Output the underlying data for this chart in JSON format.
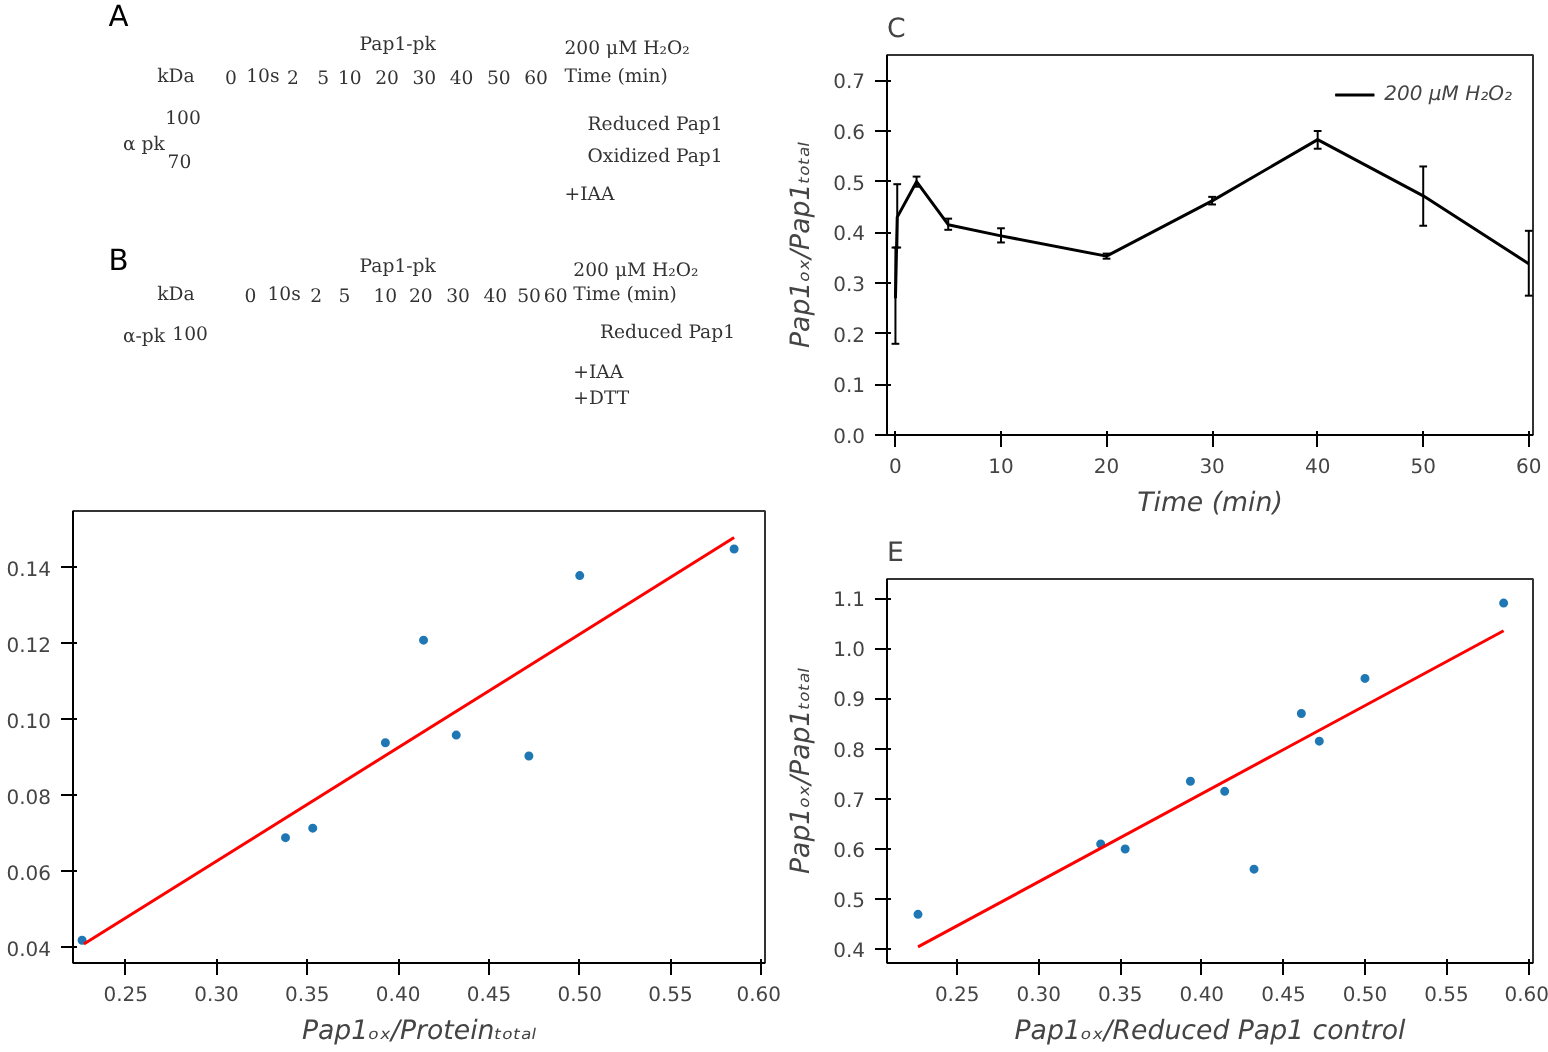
{
  "chart_data": [
    {
      "type": "other",
      "title": "A",
      "categories": [
        "0",
        "10s",
        "2",
        "5",
        "10",
        "20",
        "30",
        "40",
        "50",
        "60"
      ],
      "annotations": [
        "Pap1-pk",
        "200 μM H₂O₂",
        "Time (min)",
        "kDa",
        "100",
        "70",
        "α pk",
        "Reduced Pap1",
        "Oxidized Pap1",
        "+IAA"
      ]
    },
    {
      "type": "other",
      "title": "B",
      "categories": [
        "0",
        "10s",
        "2",
        "5",
        "10",
        "20",
        "30",
        "40",
        "50",
        "60"
      ],
      "annotations": [
        "Pap1-pk",
        "200 μM H₂O₂",
        "Time (min)",
        "kDa",
        "100",
        "α-pk",
        "Reduced Pap1",
        "+IAA",
        "+DTT"
      ]
    },
    {
      "type": "scatter",
      "xlabel": "Pap1ₒₓ/Proteinₜₒₜₐₗ",
      "xlim": [
        0.221,
        0.602
      ],
      "ylim": [
        0.036,
        0.155
      ],
      "xticks": [
        0.25,
        {
          "value": 0.3,
          "label": "0.30"
        },
        0.35,
        {
          "value": 0.4,
          "label": "0.40"
        },
        0.45,
        {
          "value": 0.5,
          "label": "0.50"
        },
        0.55,
        {
          "value": 0.6,
          "label": "0.60"
        }
      ],
      "yticks": [
        0.04,
        0.06,
        0.08,
        {
          "value": 0.1,
          "label": "0.10"
        },
        0.12,
        0.14
      ],
      "series": [
        {
          "type": "scatter",
          "color": "#1f77b4",
          "x": [
            0.226,
            0.338,
            0.353,
            0.393,
            0.414,
            0.432,
            0.472,
            0.5,
            0.585
          ],
          "values": [
            0.042,
            0.069,
            0.0715,
            0.094,
            0.121,
            0.096,
            0.0905,
            0.138,
            0.145
          ]
        },
        {
          "type": "line",
          "color": "#ff0000",
          "x": [
            0.227,
            0.585
          ],
          "values": [
            0.041,
            0.148
          ]
        }
      ]
    },
    {
      "type": "line",
      "title": "C",
      "xlabel": "Time (min)",
      "ylabel": "Pap1ₒₓ/Pap1ₜₒₜₐₗ",
      "xlim": [
        -0.8,
        60.4
      ],
      "ylim": [
        0,
        0.75
      ],
      "xticks": [
        0,
        10,
        20,
        30,
        40,
        50,
        60
      ],
      "yticks": [
        {
          "value": 0,
          "label": "0.0"
        },
        0.1,
        0.2,
        0.3,
        0.4,
        0.5,
        0.6,
        0.7
      ],
      "legend": "top right",
      "series": [
        {
          "name": "200 μM H₂O₂",
          "color": "#000000",
          "x": [
            0,
            0.17,
            2,
            5,
            10,
            20,
            30,
            40,
            50,
            60
          ],
          "values": [
            0.27,
            0.43,
            0.5,
            0.415,
            0.393,
            0.353,
            0.462,
            0.583,
            0.472,
            0.338
          ],
          "errors": [
            [
              0.18,
              0.37
            ],
            [
              0.37,
              0.495
            ],
            [
              0.49,
              0.51
            ],
            [
              0.405,
              0.427
            ],
            [
              0.38,
              0.408
            ],
            [
              0.348,
              0.358
            ],
            [
              0.455,
              0.47
            ],
            [
              0.565,
              0.6
            ],
            [
              0.413,
              0.53
            ],
            [
              0.275,
              0.403
            ]
          ]
        }
      ]
    },
    {
      "type": "scatter",
      "title": "E",
      "xlabel": "Pap1ₒₓ/Reduced Pap1 control",
      "ylabel": "Pap1ₒₓ/Pap1ₜₒₜₐₗ",
      "xlim": [
        0.207,
        0.603
      ],
      "ylim": [
        0.373,
        1.138
      ],
      "xticks": [
        0.25,
        {
          "value": 0.3,
          "label": "0.30"
        },
        0.35,
        {
          "value": 0.4,
          "label": "0.40"
        },
        0.45,
        {
          "value": 0.5,
          "label": "0.50"
        },
        0.55,
        {
          "value": 0.6,
          "label": "0.60"
        }
      ],
      "yticks": [
        0.4,
        0.5,
        0.6,
        0.7,
        0.8,
        0.9,
        {
          "value": 1.0,
          "label": "1.0"
        },
        1.1
      ],
      "series": [
        {
          "type": "scatter",
          "color": "#1f77b4",
          "x": [
            0.226,
            0.338,
            0.353,
            0.393,
            0.414,
            0.432,
            0.461,
            0.472,
            0.5,
            0.585
          ],
          "values": [
            0.47,
            0.61,
            0.6,
            0.735,
            0.715,
            0.56,
            0.87,
            0.815,
            0.94,
            1.09
          ]
        },
        {
          "type": "line",
          "color": "#ff0000",
          "x": [
            0.226,
            0.585
          ],
          "values": [
            0.405,
            1.035
          ]
        }
      ]
    }
  ]
}
